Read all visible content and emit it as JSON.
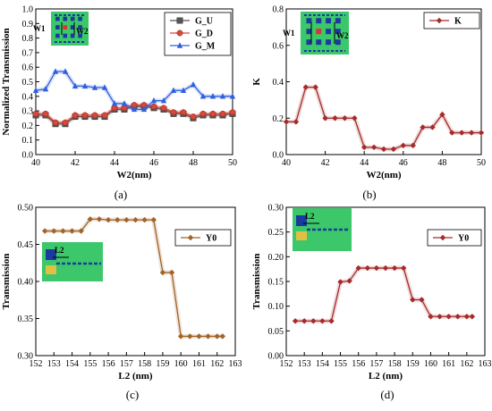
{
  "chart_data": [
    {
      "panel_label": "(a)",
      "type": "line",
      "xlabel": "W2(nm)",
      "ylabel": "Normalized Transmission",
      "xlim": [
        40,
        50
      ],
      "ylim": [
        0.0,
        1.0
      ],
      "xticks": [
        40,
        42,
        44,
        46,
        48,
        50
      ],
      "yticks": [
        0.0,
        0.1,
        0.2,
        0.3,
        0.4,
        0.5,
        0.6,
        0.7,
        0.8,
        0.9,
        1.0
      ],
      "x": [
        40,
        40.5,
        41,
        41.5,
        42,
        42.5,
        43,
        43.5,
        44,
        44.5,
        45,
        45.5,
        46,
        46.5,
        47,
        47.5,
        48,
        48.5,
        49,
        49.5,
        50
      ],
      "series": [
        {
          "name": "G_U",
          "color": "#555555",
          "marker": "square",
          "values": [
            0.27,
            0.27,
            0.21,
            0.21,
            0.26,
            0.26,
            0.26,
            0.26,
            0.31,
            0.31,
            0.33,
            0.33,
            0.32,
            0.31,
            0.28,
            0.28,
            0.25,
            0.27,
            0.27,
            0.27,
            0.28
          ]
        },
        {
          "name": "G_D",
          "color": "#d9463a",
          "marker": "circle",
          "values": [
            0.28,
            0.28,
            0.22,
            0.22,
            0.27,
            0.27,
            0.27,
            0.27,
            0.32,
            0.32,
            0.34,
            0.34,
            0.33,
            0.32,
            0.29,
            0.29,
            0.26,
            0.28,
            0.28,
            0.28,
            0.29
          ]
        },
        {
          "name": "G_M",
          "color": "#2f5fe0",
          "marker": "triangle",
          "values": [
            0.44,
            0.45,
            0.57,
            0.57,
            0.47,
            0.47,
            0.46,
            0.46,
            0.35,
            0.35,
            0.31,
            0.31,
            0.37,
            0.37,
            0.44,
            0.44,
            0.48,
            0.4,
            0.4,
            0.4,
            0.4
          ]
        }
      ],
      "legend_position": "top-right",
      "inset_labels": [
        "W1",
        "W2"
      ]
    },
    {
      "panel_label": "(b)",
      "type": "line",
      "xlabel": "W2(nm)",
      "ylabel": "K",
      "xlim": [
        40,
        50
      ],
      "ylim": [
        0.0,
        0.8
      ],
      "xticks": [
        40,
        42,
        44,
        46,
        48,
        50
      ],
      "yticks": [
        0.0,
        0.2,
        0.4,
        0.6,
        0.8
      ],
      "x": [
        40,
        40.5,
        41,
        41.5,
        42,
        42.5,
        43,
        43.5,
        44,
        44.5,
        45,
        45.5,
        46,
        46.5,
        47,
        47.5,
        48,
        48.5,
        49,
        49.5,
        50
      ],
      "series": [
        {
          "name": "K",
          "color": "#a52a2a",
          "marker": "diamond",
          "values": [
            0.18,
            0.18,
            0.37,
            0.37,
            0.2,
            0.2,
            0.2,
            0.2,
            0.04,
            0.04,
            0.03,
            0.03,
            0.05,
            0.05,
            0.15,
            0.15,
            0.22,
            0.12,
            0.12,
            0.12,
            0.12
          ]
        }
      ],
      "legend_position": "top-right",
      "inset_labels": [
        "W1",
        "W2"
      ]
    },
    {
      "panel_label": "(c)",
      "type": "line",
      "xlabel": "L2 (nm)",
      "ylabel": "Transmission",
      "xlim": [
        152,
        163
      ],
      "ylim": [
        0.3,
        0.5
      ],
      "xticks": [
        152,
        153,
        154,
        155,
        156,
        157,
        158,
        159,
        160,
        161,
        162,
        163
      ],
      "yticks": [
        0.3,
        0.35,
        0.4,
        0.45,
        0.5
      ],
      "x": [
        152.5,
        153,
        153.5,
        154,
        154.5,
        155,
        155.5,
        156,
        156.5,
        157,
        157.5,
        158,
        158.5,
        159,
        159.5,
        160,
        160.5,
        161,
        161.5,
        162,
        162.3
      ],
      "series": [
        {
          "name": "Y0",
          "color": "#a0632a",
          "marker": "diamond",
          "values": [
            0.468,
            0.468,
            0.468,
            0.468,
            0.468,
            0.484,
            0.484,
            0.483,
            0.483,
            0.483,
            0.483,
            0.483,
            0.483,
            0.412,
            0.412,
            0.326,
            0.326,
            0.326,
            0.326,
            0.326,
            0.326
          ]
        }
      ],
      "legend_position": "top-right",
      "inset_labels": [
        "L2"
      ]
    },
    {
      "panel_label": "(d)",
      "type": "line",
      "xlabel": "L2 (nm)",
      "ylabel": "Transmission",
      "xlim": [
        152,
        163
      ],
      "ylim": [
        0.0,
        0.3
      ],
      "xticks": [
        152,
        153,
        154,
        155,
        156,
        157,
        158,
        159,
        160,
        161,
        162,
        163
      ],
      "yticks": [
        0.0,
        0.05,
        0.1,
        0.15,
        0.2,
        0.25,
        0.3
      ],
      "x": [
        152.5,
        153,
        153.5,
        154,
        154.5,
        155,
        155.5,
        156,
        156.5,
        157,
        157.5,
        158,
        158.5,
        159,
        159.5,
        160,
        160.5,
        161,
        161.5,
        162,
        162.3
      ],
      "series": [
        {
          "name": "Y0",
          "color": "#a52a2a",
          "marker": "diamond",
          "values": [
            0.07,
            0.07,
            0.07,
            0.07,
            0.07,
            0.149,
            0.151,
            0.177,
            0.177,
            0.177,
            0.177,
            0.177,
            0.177,
            0.113,
            0.113,
            0.079,
            0.079,
            0.079,
            0.079,
            0.079,
            0.079
          ]
        }
      ],
      "legend_position": "top-right",
      "inset_labels": [
        "L2"
      ]
    }
  ]
}
